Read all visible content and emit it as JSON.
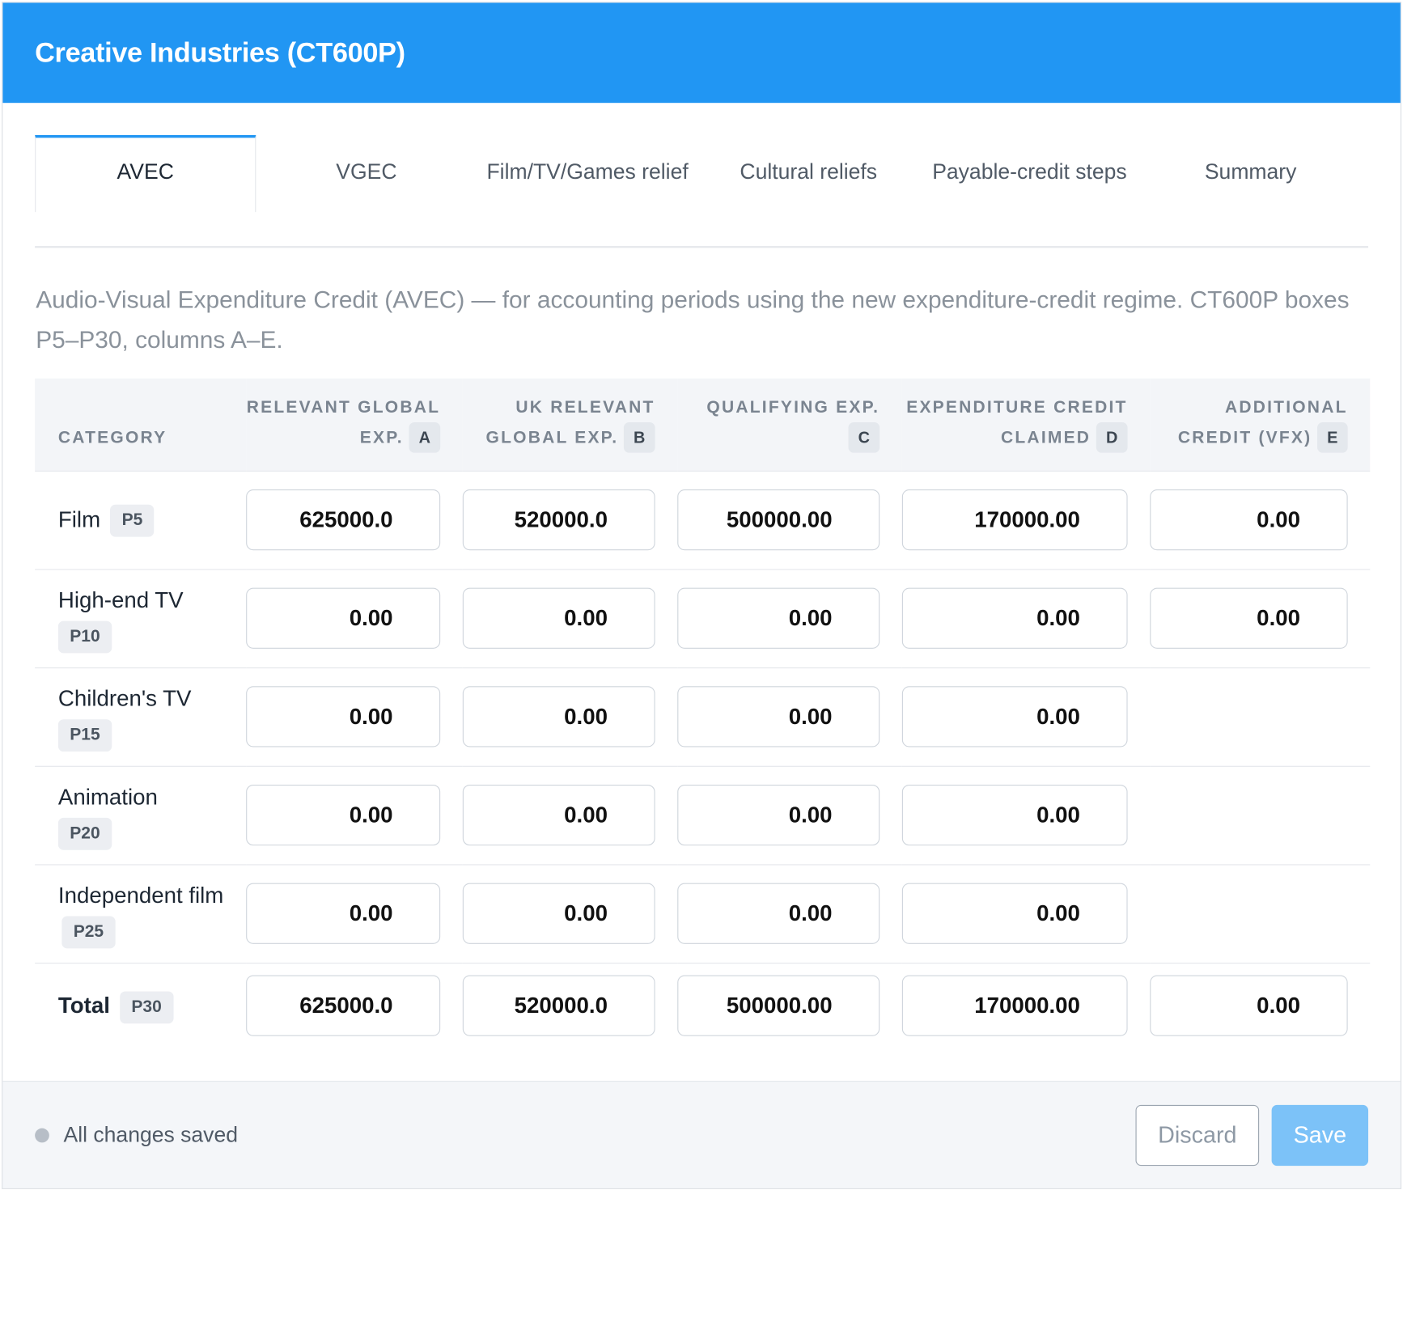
{
  "title": "Creative Industries (CT600P)",
  "tabs": [
    {
      "label": "AVEC"
    },
    {
      "label": "VGEC"
    },
    {
      "label": "Film/TV/Games relief"
    },
    {
      "label": "Cultural reliefs"
    },
    {
      "label": "Payable-credit steps"
    },
    {
      "label": "Summary"
    }
  ],
  "intro": "Audio-Visual Expenditure Credit (AVEC) — for accounting periods using the new expenditure-credit regime. CT600P boxes P5–P30, columns A–E.",
  "columns": [
    {
      "label": "CATEGORY"
    },
    {
      "label": "RELEVANT GLOBAL EXP.",
      "code": "A"
    },
    {
      "label": "UK RELEVANT GLOBAL EXP.",
      "code": "B"
    },
    {
      "label": "QUALIFYING EXP.",
      "code": "C"
    },
    {
      "label": "EXPENDITURE CREDIT CLAIMED",
      "code": "D"
    },
    {
      "label": "ADDITIONAL CREDIT (VFX)",
      "code": "E"
    }
  ],
  "rows": [
    {
      "name": "Film",
      "box": "P5",
      "values": [
        "625000.0",
        "520000.0",
        "500000.00",
        "170000.00",
        "0.00"
      ]
    },
    {
      "name": "High-end TV",
      "box": "P10",
      "values": [
        "0.00",
        "0.00",
        "0.00",
        "0.00",
        "0.00"
      ]
    },
    {
      "name": "Children's TV",
      "box": "P15",
      "values": [
        "0.00",
        "0.00",
        "0.00",
        "0.00"
      ]
    },
    {
      "name": "Animation",
      "box": "P20",
      "values": [
        "0.00",
        "0.00",
        "0.00",
        "0.00"
      ]
    },
    {
      "name": "Independent film",
      "box": "P25",
      "values": [
        "0.00",
        "0.00",
        "0.00",
        "0.00"
      ]
    }
  ],
  "total": {
    "name": "Total",
    "box": "P30",
    "values": [
      "625000.0",
      "520000.0",
      "500000.00",
      "170000.00",
      "0.00"
    ]
  },
  "footer": {
    "status": "All changes saved",
    "discard_label": "Discard",
    "save_label": "Save"
  },
  "colors": {
    "accent": "#2196f3",
    "save_disabled": "#7cc2f8"
  }
}
